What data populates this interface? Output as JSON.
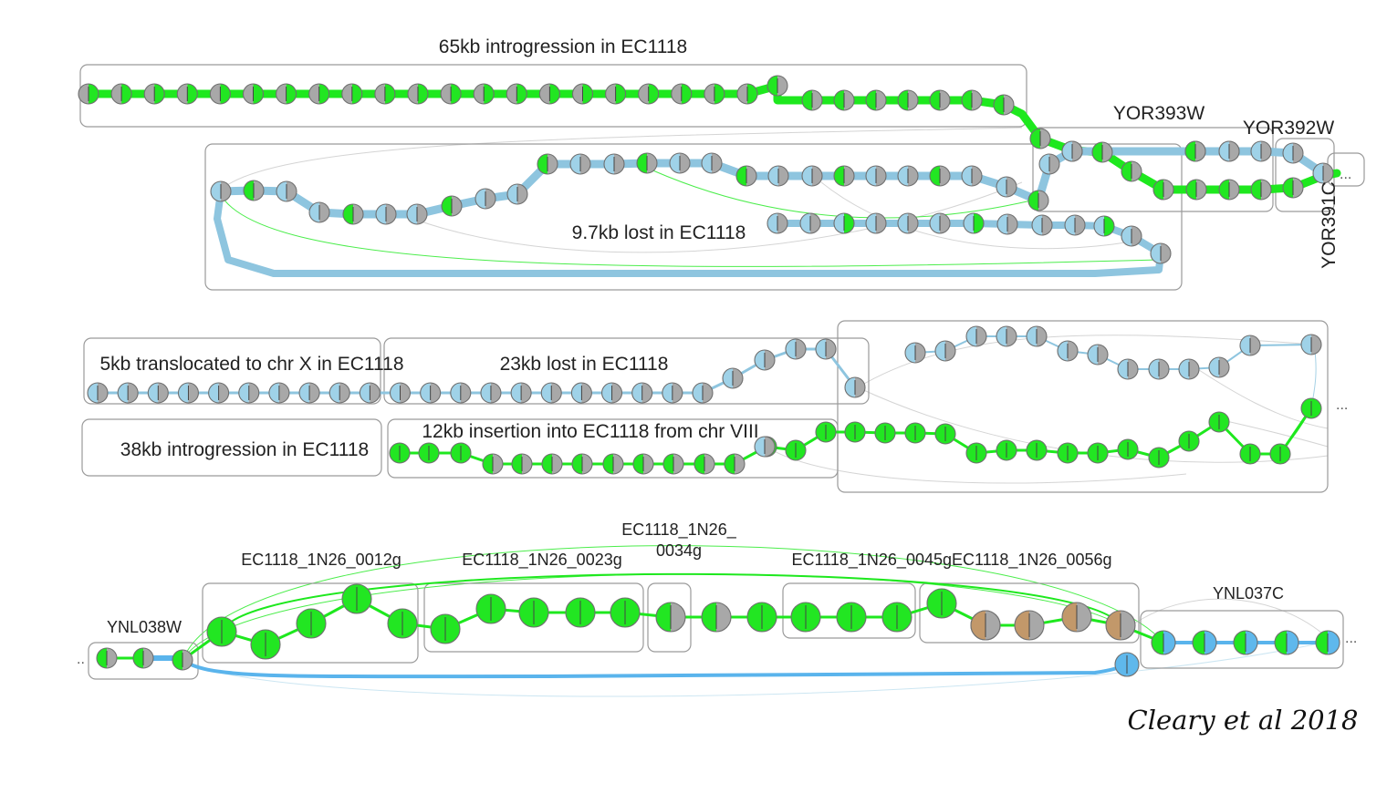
{
  "colors": {
    "green": "#1ee81e",
    "blue": "#8ec5df",
    "node_green": "#22e622",
    "node_grey": "#a8a8a8",
    "node_blue": "#9fd2e8",
    "node_brown": "#c2986a",
    "node_blue2": "#5fb8ec",
    "edge_thin": "#c9c9c9",
    "box": "#9a9a9a"
  },
  "labels": {
    "intro65": "65kb introgression in EC1118",
    "yor393w": "YOR393W",
    "yor392w": "YOR392W",
    "yor391c": "YOR391C",
    "lost97": "9.7kb lost in EC1118",
    "transloc5": "5kb translocated to chr X in EC1118",
    "lost23": "23kb lost in EC1118",
    "intro38": "38kb introgression in EC1118",
    "insert12": "12kb insertion into EC1118 from chr VIII",
    "ynl038w": "YNL038W",
    "g0012": "EC1118_1N26_0012g",
    "g0023": "EC1118_1N26_0023g",
    "g0034_line1": "EC1118_1N26_",
    "g0034_line2": "0034g",
    "g0045_0056": "EC1118_1N26_0045gEC1118_1N26_0056g",
    "ynl037c": "YNL037C",
    "ellipsis": "...",
    "left_dots": "..",
    "credit": "Cleary et al 2018"
  }
}
